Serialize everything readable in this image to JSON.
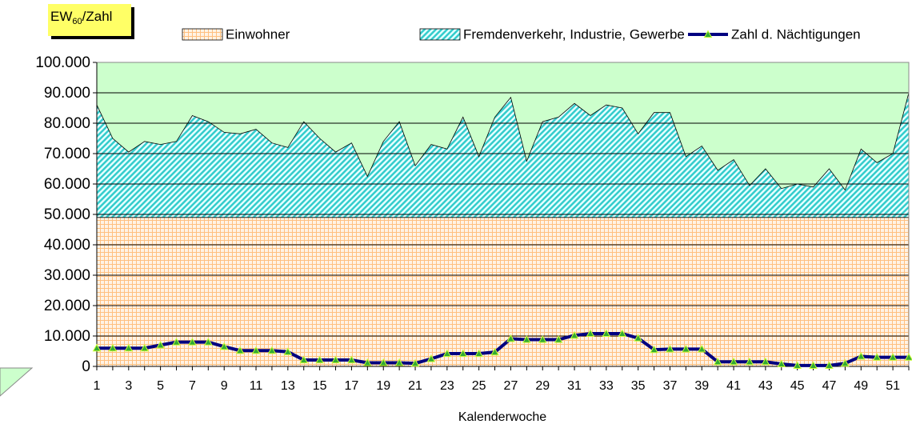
{
  "chart_data": {
    "type": "stacked-area-line",
    "ylabel": {
      "main": "EW",
      "sub": "60",
      "rest": "/Zahl"
    },
    "xlabel": "Kalenderwoche",
    "categories": [
      1,
      null,
      3,
      null,
      5,
      null,
      7,
      null,
      9,
      null,
      11,
      null,
      13,
      null,
      15,
      null,
      17,
      null,
      19,
      null,
      21,
      null,
      23,
      null,
      25,
      null,
      27,
      null,
      29,
      null,
      31,
      null,
      33,
      null,
      35,
      null,
      37,
      null,
      39,
      null,
      41,
      null,
      43,
      null,
      45,
      null,
      47,
      null,
      49,
      null,
      51,
      null
    ],
    "series": [
      {
        "name": "Einwohner",
        "color": "#ffcc99",
        "kind": "area",
        "values": [
          49000,
          49000,
          49000,
          49000,
          49000,
          49000,
          49000,
          49000,
          49000,
          49000,
          49000,
          49000,
          49000,
          49000,
          49000,
          49000,
          49000,
          49000,
          49000,
          49000,
          49000,
          49000,
          49000,
          49000,
          49000,
          49000,
          49000,
          49000,
          49000,
          49000,
          49000,
          49000,
          49000,
          49000,
          49000,
          49000,
          49000,
          49000,
          49000,
          49000,
          49000,
          49000,
          49000,
          49000,
          49000,
          49000,
          49000,
          49000,
          49000,
          49000,
          49000,
          49000
        ]
      },
      {
        "name": "Fremdenverkehr, Industrie, Gewerbe",
        "color": "#33cccc",
        "kind": "area",
        "values": [
          37000,
          26000,
          21500,
          25000,
          24000,
          25000,
          33500,
          31500,
          28000,
          27500,
          29000,
          24500,
          23000,
          31500,
          26000,
          21500,
          24500,
          13500,
          25000,
          31500,
          17000,
          24000,
          22500,
          33000,
          20000,
          33000,
          39500,
          18500,
          31500,
          33000,
          37500,
          33500,
          37000,
          36000,
          27500,
          34500,
          34500,
          20000,
          23500,
          15500,
          19000,
          10500,
          16000,
          9500,
          11000,
          10000,
          16000,
          9000,
          22500,
          18000,
          21000,
          41000
        ]
      },
      {
        "name": "Zahl d. Nächtigungen",
        "color": "#000080",
        "kind": "line",
        "values": [
          6000,
          6000,
          6000,
          6000,
          7000,
          8000,
          8000,
          8000,
          6500,
          5200,
          5200,
          5200,
          4800,
          2100,
          2100,
          2100,
          2100,
          1200,
          1200,
          1200,
          1000,
          2500,
          4200,
          4200,
          4200,
          4700,
          9100,
          8800,
          8800,
          8800,
          10200,
          10800,
          10800,
          10800,
          9300,
          5500,
          5700,
          5700,
          5700,
          1500,
          1500,
          1500,
          1500,
          800,
          300,
          300,
          300,
          1000,
          3300,
          3000,
          3000,
          3000
        ]
      }
    ],
    "ylim": [
      0,
      100000
    ],
    "yticks": [
      0,
      {
        "value": 10000,
        "label": "10.000"
      },
      {
        "value": 20000,
        "label": "20.000"
      },
      {
        "value": 30000,
        "label": "30.000"
      },
      {
        "value": 40000,
        "label": "40.000"
      },
      {
        "value": 50000,
        "label": "50.000"
      },
      {
        "value": 60000,
        "label": "60.000"
      },
      {
        "value": 70000,
        "label": "70.000"
      },
      {
        "value": 80000,
        "label": "80.000"
      },
      {
        "value": 90000,
        "label": "90.000"
      },
      {
        "value": 100000,
        "label": "100.000"
      }
    ],
    "grid": true,
    "plot_background": "#ccffcc",
    "legend": "top"
  }
}
